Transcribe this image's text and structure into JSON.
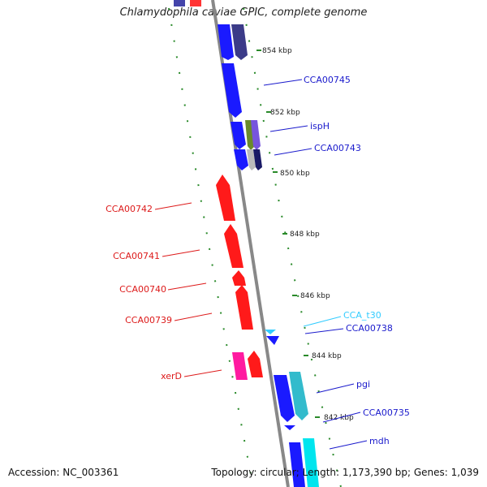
{
  "title": "Chlamydophila caviae GPIC, complete genome",
  "footer": {
    "accession": "Accession: NC_003361",
    "summary": "Topology: circular; Length: 1,173,390 bp; Genes: 1,039"
  },
  "colors": {
    "forward_gene": "#1a1aff",
    "reverse_gene": "#ff1a1a",
    "backbone": "#888888",
    "tick": "#2a8a2a",
    "trna": "#33ccff"
  },
  "scale_ticks": [
    {
      "label": "854 kbp"
    },
    {
      "label": "852 kbp"
    },
    {
      "label": "850 kbp"
    },
    {
      "label": "848 kbp"
    },
    {
      "label": "846 kbp"
    },
    {
      "label": "844 kbp"
    },
    {
      "label": "842 kbp"
    }
  ],
  "forward_labels": [
    {
      "name": "CCA00745",
      "color": "#1a1acc"
    },
    {
      "name": "ispH",
      "color": "#1a1acc"
    },
    {
      "name": "CCA00743",
      "color": "#1a1acc"
    },
    {
      "name": "CCA_t30",
      "color": "#33ccff"
    },
    {
      "name": "CCA00738",
      "color": "#1a1acc"
    },
    {
      "name": "pgi",
      "color": "#1a1acc"
    },
    {
      "name": "CCA00735",
      "color": "#1a1acc"
    },
    {
      "name": "mdh",
      "color": "#1a1acc"
    }
  ],
  "reverse_labels": [
    {
      "name": "CCA00742",
      "color": "#dd1a1a"
    },
    {
      "name": "CCA00741",
      "color": "#dd1a1a"
    },
    {
      "name": "CCA00740",
      "color": "#dd1a1a"
    },
    {
      "name": "CCA00739",
      "color": "#dd1a1a"
    },
    {
      "name": "xerD",
      "color": "#dd1a1a"
    }
  ]
}
